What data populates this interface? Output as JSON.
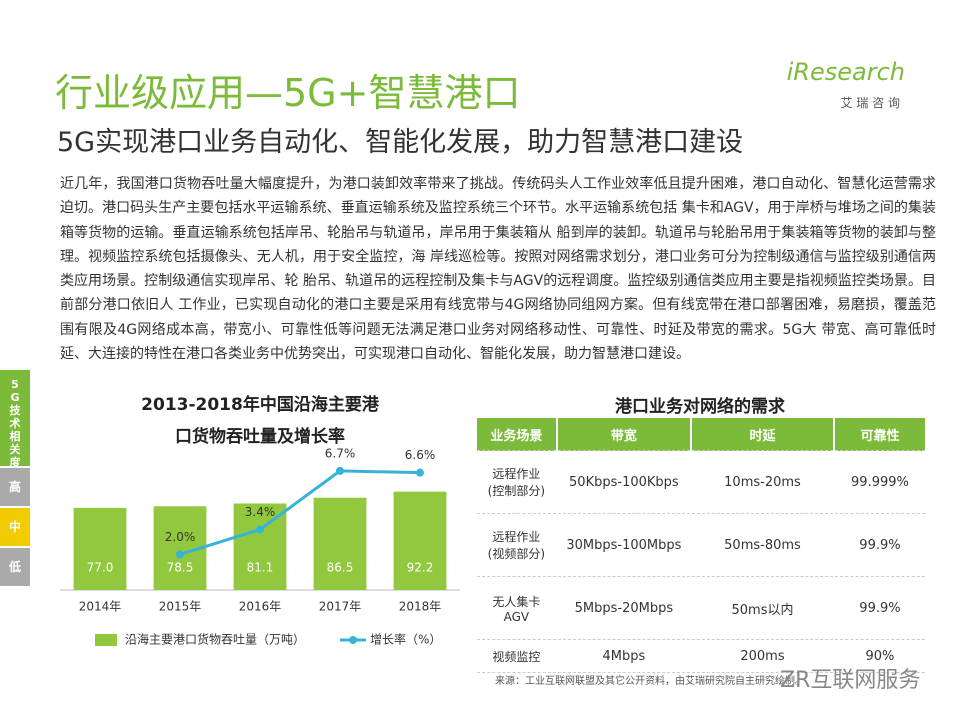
{
  "header": {
    "title": "行业级应用—5G+智慧港口",
    "subtitle": "5G实现港口业务自动化、智能化发展，助力智慧港口建设",
    "logo": "iResearch",
    "logo_sub": "艾 瑞 咨 询"
  },
  "paragraph": "近几年，我国港口货物吞吐量大幅度提升，为港口装卸效率带来了挑战。传统码头人工作业效率低且提升困难，港口自动化、智慧化运营需求迫切。港口码头生产主要包括水平运输系统、垂直运输系统及监控系统三个环节。水平运输系统包括 集卡和AGV，用于岸桥与堆场之间的集装箱等货物的运输。垂直运输系统包括岸吊、轮胎吊与轨道吊，岸吊用于集装箱从 船到岸的装卸。轨道吊与轮胎吊用于集装箱等货物的装卸与整理。视频监控系统包括摄像头、无人机，用于安全监控，海 岸线巡检等。按照对网络需求划分，港口业务可分为控制级通信与监控级别通信两类应用场景。控制级通信实现岸吊、轮 胎吊、轨道吊的远程控制及集卡与AGV的远程调度。监控级别通信类应用主要是指视频监控类场景。目前部分港口依旧人 工作业，已实现自动化的港口主要是采用有线宽带与4G网络协同组网方案。但有线宽带在港口部署困难，易磨损，覆盖范 围有限及4G网络成本高，带宽小、可靠性低等问题无法满足港口业务对网络移动性、可靠性、时延及带宽的需求。5G大 带宽、高可靠低时延、大连接的特性在港口各类业务中优势突出，可实现港口自动化、智能化发展，助力智慧港口建设。",
  "sidebar": {
    "title": "5G技术相关度",
    "levels": [
      "高",
      "中",
      "低"
    ]
  },
  "chart_data": {
    "type": "bar-line",
    "title": "2013-2018年中国沿海主要港口货物吞吐量及增长率",
    "categories": [
      "2014年",
      "2015年",
      "2016年",
      "2017年",
      "2018年"
    ],
    "series": [
      {
        "name": "沿海主要港口货物吞吐量（万吨）",
        "type": "bar",
        "color": "#92c83e",
        "values": [
          77.0,
          78.5,
          81.1,
          86.5,
          92.2
        ],
        "value_labels": [
          "77.0",
          "78.5",
          "81.1",
          "86.5",
          "92.2"
        ]
      },
      {
        "name": "增长率（%）",
        "type": "line",
        "axis": "y2",
        "color": "#35b4d8",
        "values": [
          null,
          2.0,
          3.4,
          6.7,
          6.6
        ],
        "value_labels": [
          null,
          "2.0%",
          "3.4%",
          "6.7%",
          "6.6%"
        ]
      }
    ],
    "ylim": [
      0,
      150
    ],
    "y2lim": [
      0,
      9
    ]
  },
  "table": {
    "title": "港口业务对网络的需求",
    "header": [
      "业务场景",
      "带宽",
      "时延",
      "可靠性"
    ],
    "rows": [
      [
        "远程作业\n(控制部分)",
        "50Kbps-100Kbps",
        "10ms-20ms",
        "99.999%"
      ],
      [
        "远程作业\n(视频部分)",
        "30Mbps-100Mbps",
        "50ms-80ms",
        "99.9%"
      ],
      [
        "无人集卡\nAGV",
        "5Mbps-20Mbps",
        "50ms以内",
        "99.9%"
      ],
      [
        "视频监控",
        "4Mbps",
        "200ms",
        "90%"
      ]
    ]
  },
  "source": "来源：工业互联网联盟及其它公开资料，由艾瑞研究院自主研究绘制。",
  "watermark": "ZR互联网服务"
}
